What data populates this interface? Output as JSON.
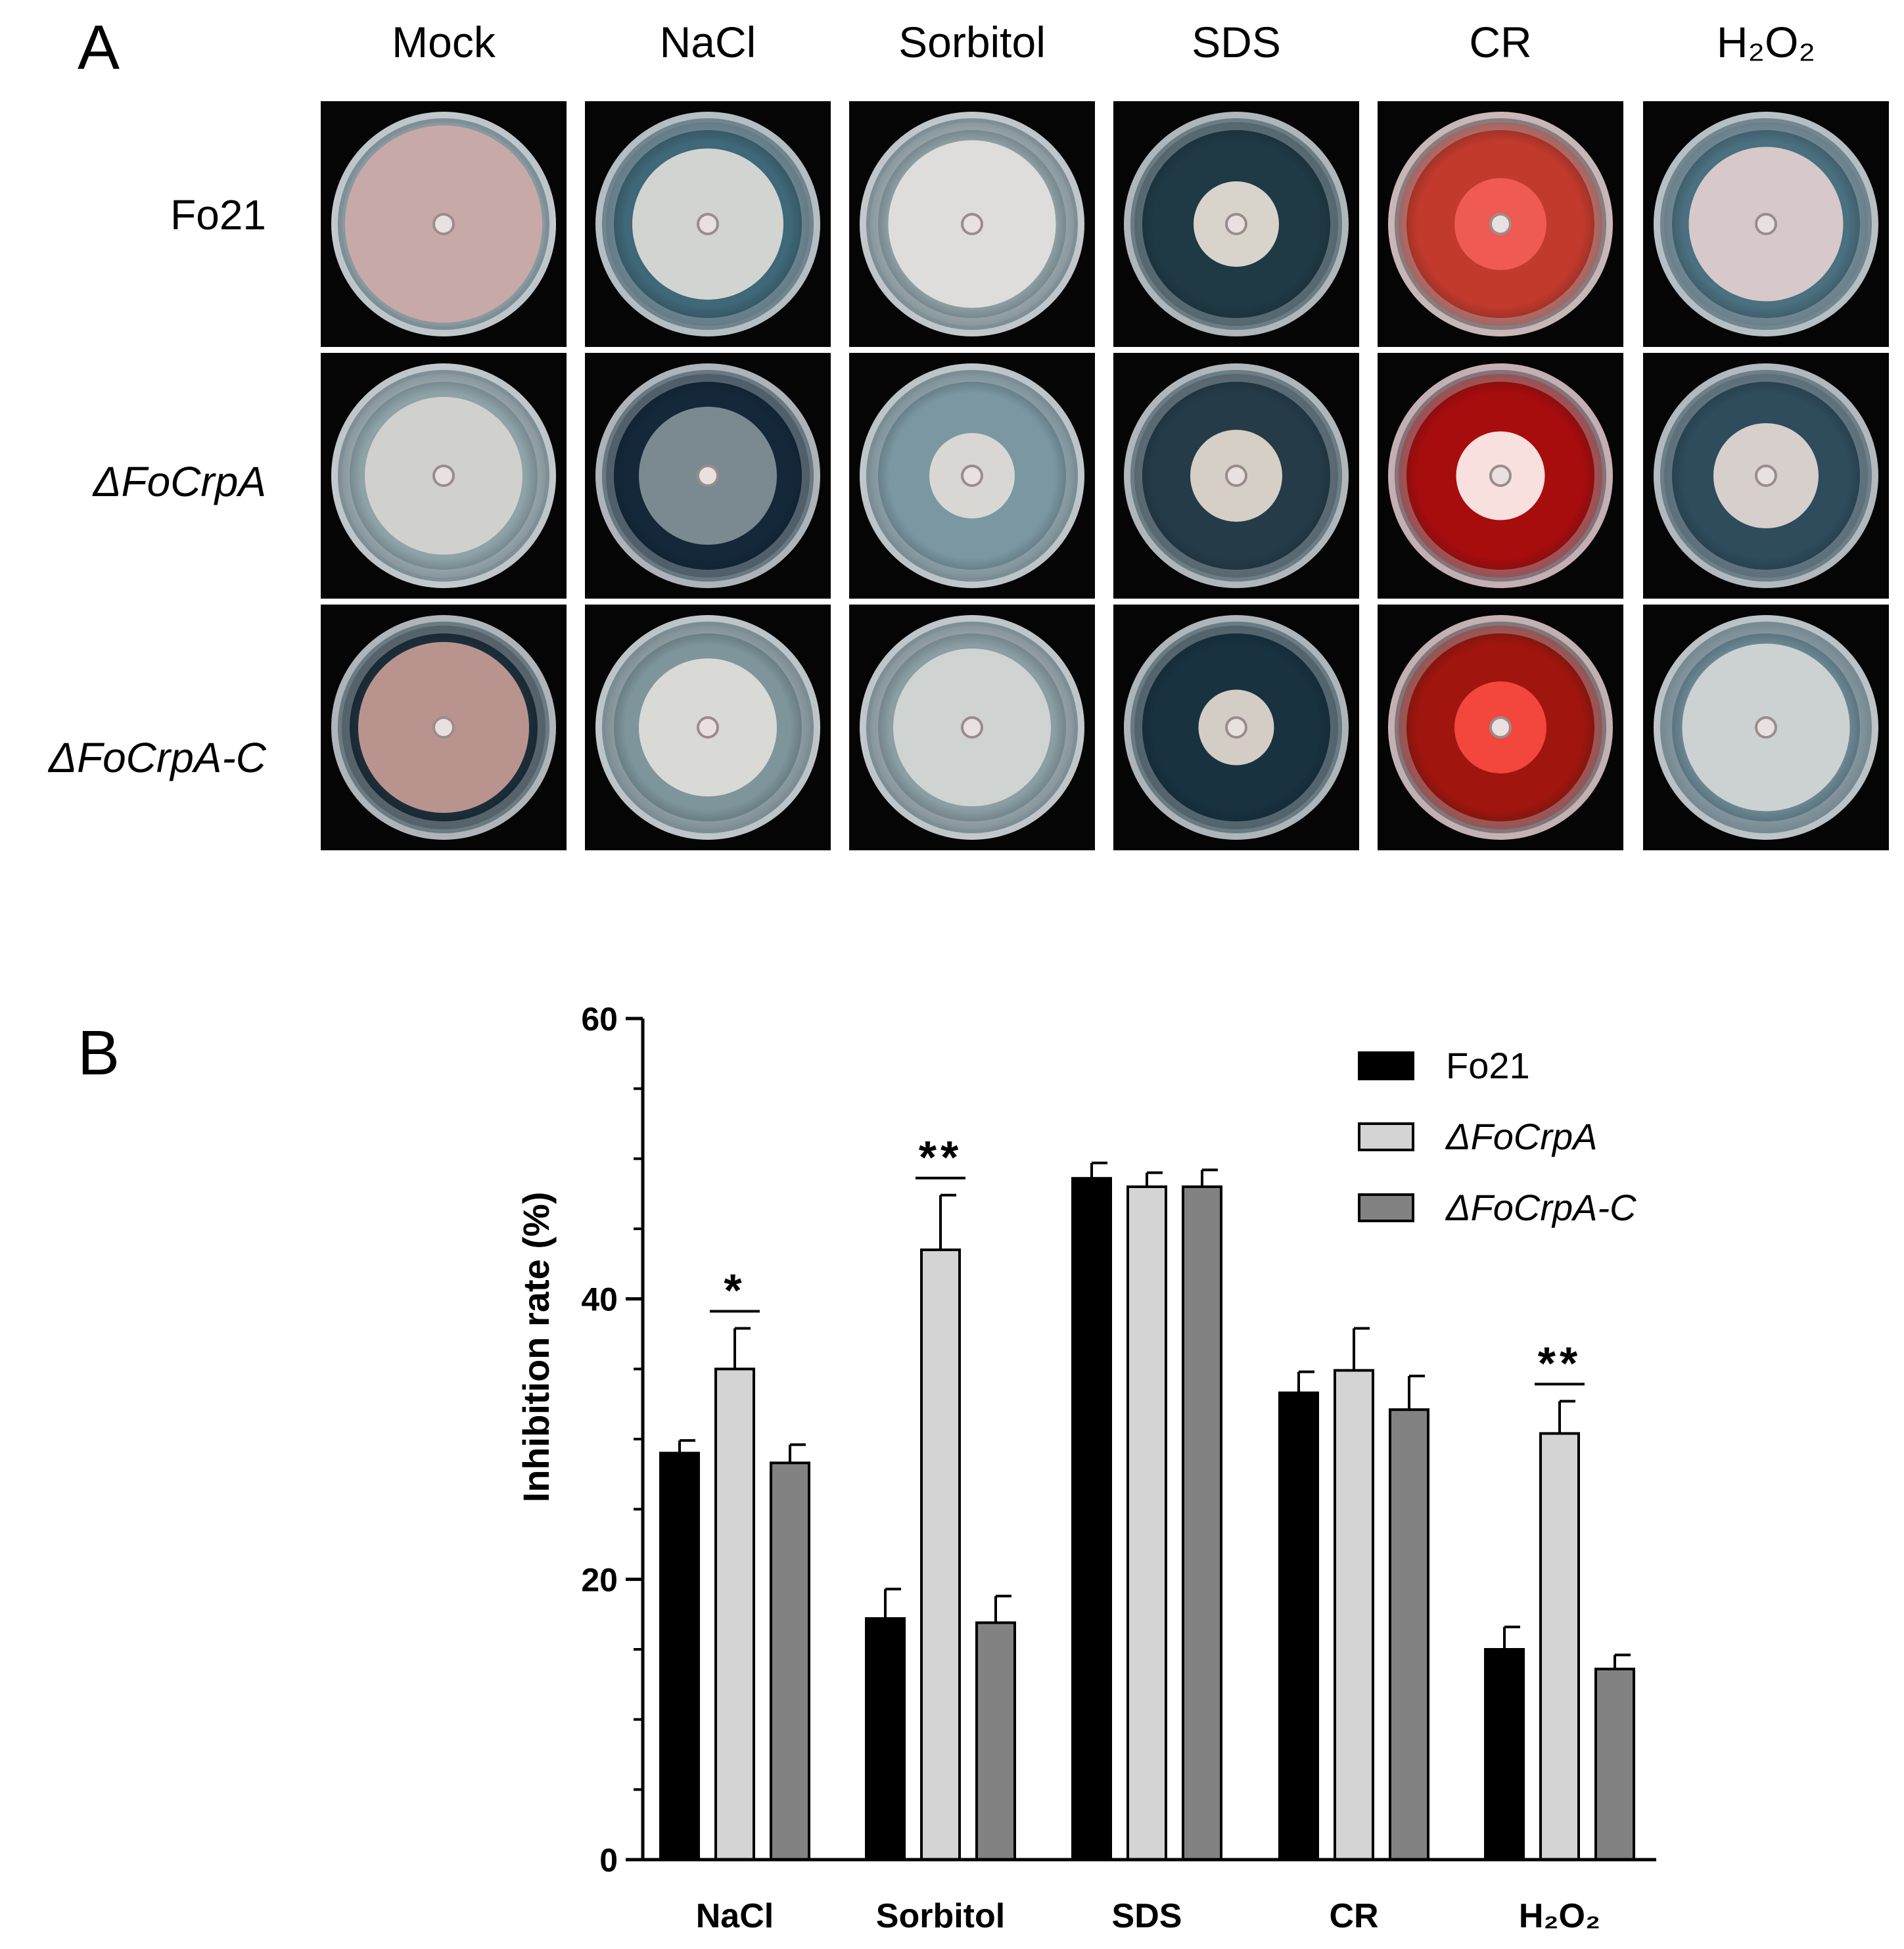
{
  "panel_a": {
    "letter": "A",
    "columns": [
      "Mock",
      "NaCl",
      "Sorbitol",
      "SDS",
      "CR",
      "H₂O₂"
    ],
    "rows": [
      "Fo21",
      "ΔFoCrpA",
      "ΔFoCrpA-C"
    ]
  },
  "panel_b": {
    "letter": "B"
  },
  "colors": {
    "Fo21": "#000000",
    "dFoCrpA": "#d4d4d4",
    "dFoCrpA_C": "#828282"
  },
  "chart_data": {
    "type": "bar",
    "categories": [
      "NaCl",
      "Sorbitol",
      "SDS",
      "CR",
      "H₂O₂"
    ],
    "ylabel": "Inhibition rate (%)",
    "ylim": [
      0,
      60
    ],
    "yticks": [
      0,
      20,
      40,
      60
    ],
    "legend_position": "top-right",
    "series": [
      {
        "name": "Fo21",
        "values": [
          29.0,
          17.2,
          48.6,
          33.3,
          15.0
        ],
        "errors": [
          0.9,
          2.1,
          1.1,
          1.5,
          1.6
        ]
      },
      {
        "name": "ΔFoCrpA",
        "values": [
          35.0,
          43.5,
          48.0,
          34.9,
          30.4
        ],
        "errors": [
          2.9,
          3.9,
          1.0,
          3.0,
          2.3
        ]
      },
      {
        "name": "ΔFoCrpA-C",
        "values": [
          28.3,
          16.9,
          48.0,
          32.1,
          13.6
        ],
        "errors": [
          1.3,
          1.9,
          1.2,
          2.4,
          1.0
        ]
      }
    ],
    "significance": [
      {
        "category": "NaCl",
        "label": "*"
      },
      {
        "category": "Sorbitol",
        "label": "**"
      },
      {
        "category": "H₂O₂",
        "label": "**"
      }
    ]
  }
}
